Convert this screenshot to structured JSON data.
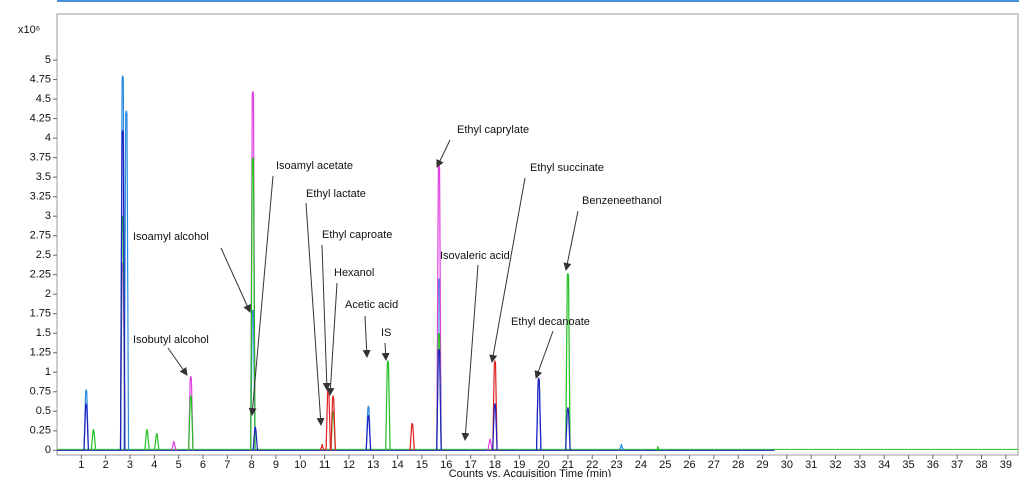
{
  "chart_data": {
    "type": "line",
    "y_multiplier": "x10⁶",
    "x_label": "Counts vs. Acquisition Time (min)",
    "xlim": [
      0,
      39.5
    ],
    "ylim": [
      -0.06,
      5.59
    ],
    "xticks": [
      1,
      2,
      3,
      4,
      5,
      6,
      7,
      8,
      9,
      10,
      11,
      12,
      13,
      14,
      15,
      16,
      17,
      18,
      19,
      20,
      21,
      22,
      23,
      24,
      25,
      26,
      27,
      28,
      29,
      30,
      31,
      32,
      33,
      34,
      35,
      36,
      37,
      38,
      39
    ],
    "yticks": [
      0,
      0.25,
      0.5,
      0.75,
      1,
      1.25,
      1.5,
      1.75,
      2,
      2.25,
      2.5,
      2.75,
      3,
      3.25,
      3.5,
      3.75,
      4,
      4.25,
      4.5,
      4.75,
      5
    ],
    "series": [
      {
        "color": "#2b8be0",
        "x": [
          1.2,
          2.7,
          2.85,
          8.05,
          12.8,
          15.7,
          19.8,
          23.2
        ],
        "values": [
          0.78,
          4.8,
          4.35,
          1.8,
          0.57,
          2.2,
          0.9,
          0.08
        ]
      },
      {
        "color": "#e040e0",
        "x": [
          2.7,
          4.8,
          5.5,
          8.05,
          15.7,
          17.8
        ],
        "values": [
          2.4,
          0.12,
          0.95,
          4.6,
          3.65,
          0.15
        ]
      },
      {
        "color": "#22c022",
        "x": [
          1.5,
          2.7,
          3.7,
          4.1,
          5.5,
          8.05,
          11.35,
          13.6,
          15.7,
          21.0,
          24.7
        ],
        "values": [
          0.27,
          3.0,
          0.27,
          0.22,
          0.7,
          3.75,
          0.5,
          1.15,
          1.5,
          2.27,
          0.05
        ]
      },
      {
        "color": "#e02020",
        "x": [
          10.9,
          11.15,
          11.35,
          14.6,
          18.0
        ],
        "values": [
          0.08,
          0.8,
          0.7,
          0.35,
          1.15
        ]
      },
      {
        "color": "#2020c0",
        "x": [
          1.2,
          2.7,
          8.15,
          12.8,
          15.7,
          18.0,
          19.8,
          21.0
        ],
        "values": [
          0.6,
          4.1,
          0.3,
          0.45,
          1.3,
          0.6,
          0.93,
          0.55
        ]
      }
    ],
    "annotations": [
      "Isoamyl alcohol",
      "Isobutyl alcohol",
      "Isoamyl acetate",
      "Ethyl lactate",
      "Ethyl caproate",
      "Hexanol",
      "Acetic acid",
      "IS",
      "Ethyl caprylate",
      "Isovaleric acid",
      "Ethyl succinate",
      "Ethyl decanoate",
      "Benzeneethanol"
    ]
  }
}
